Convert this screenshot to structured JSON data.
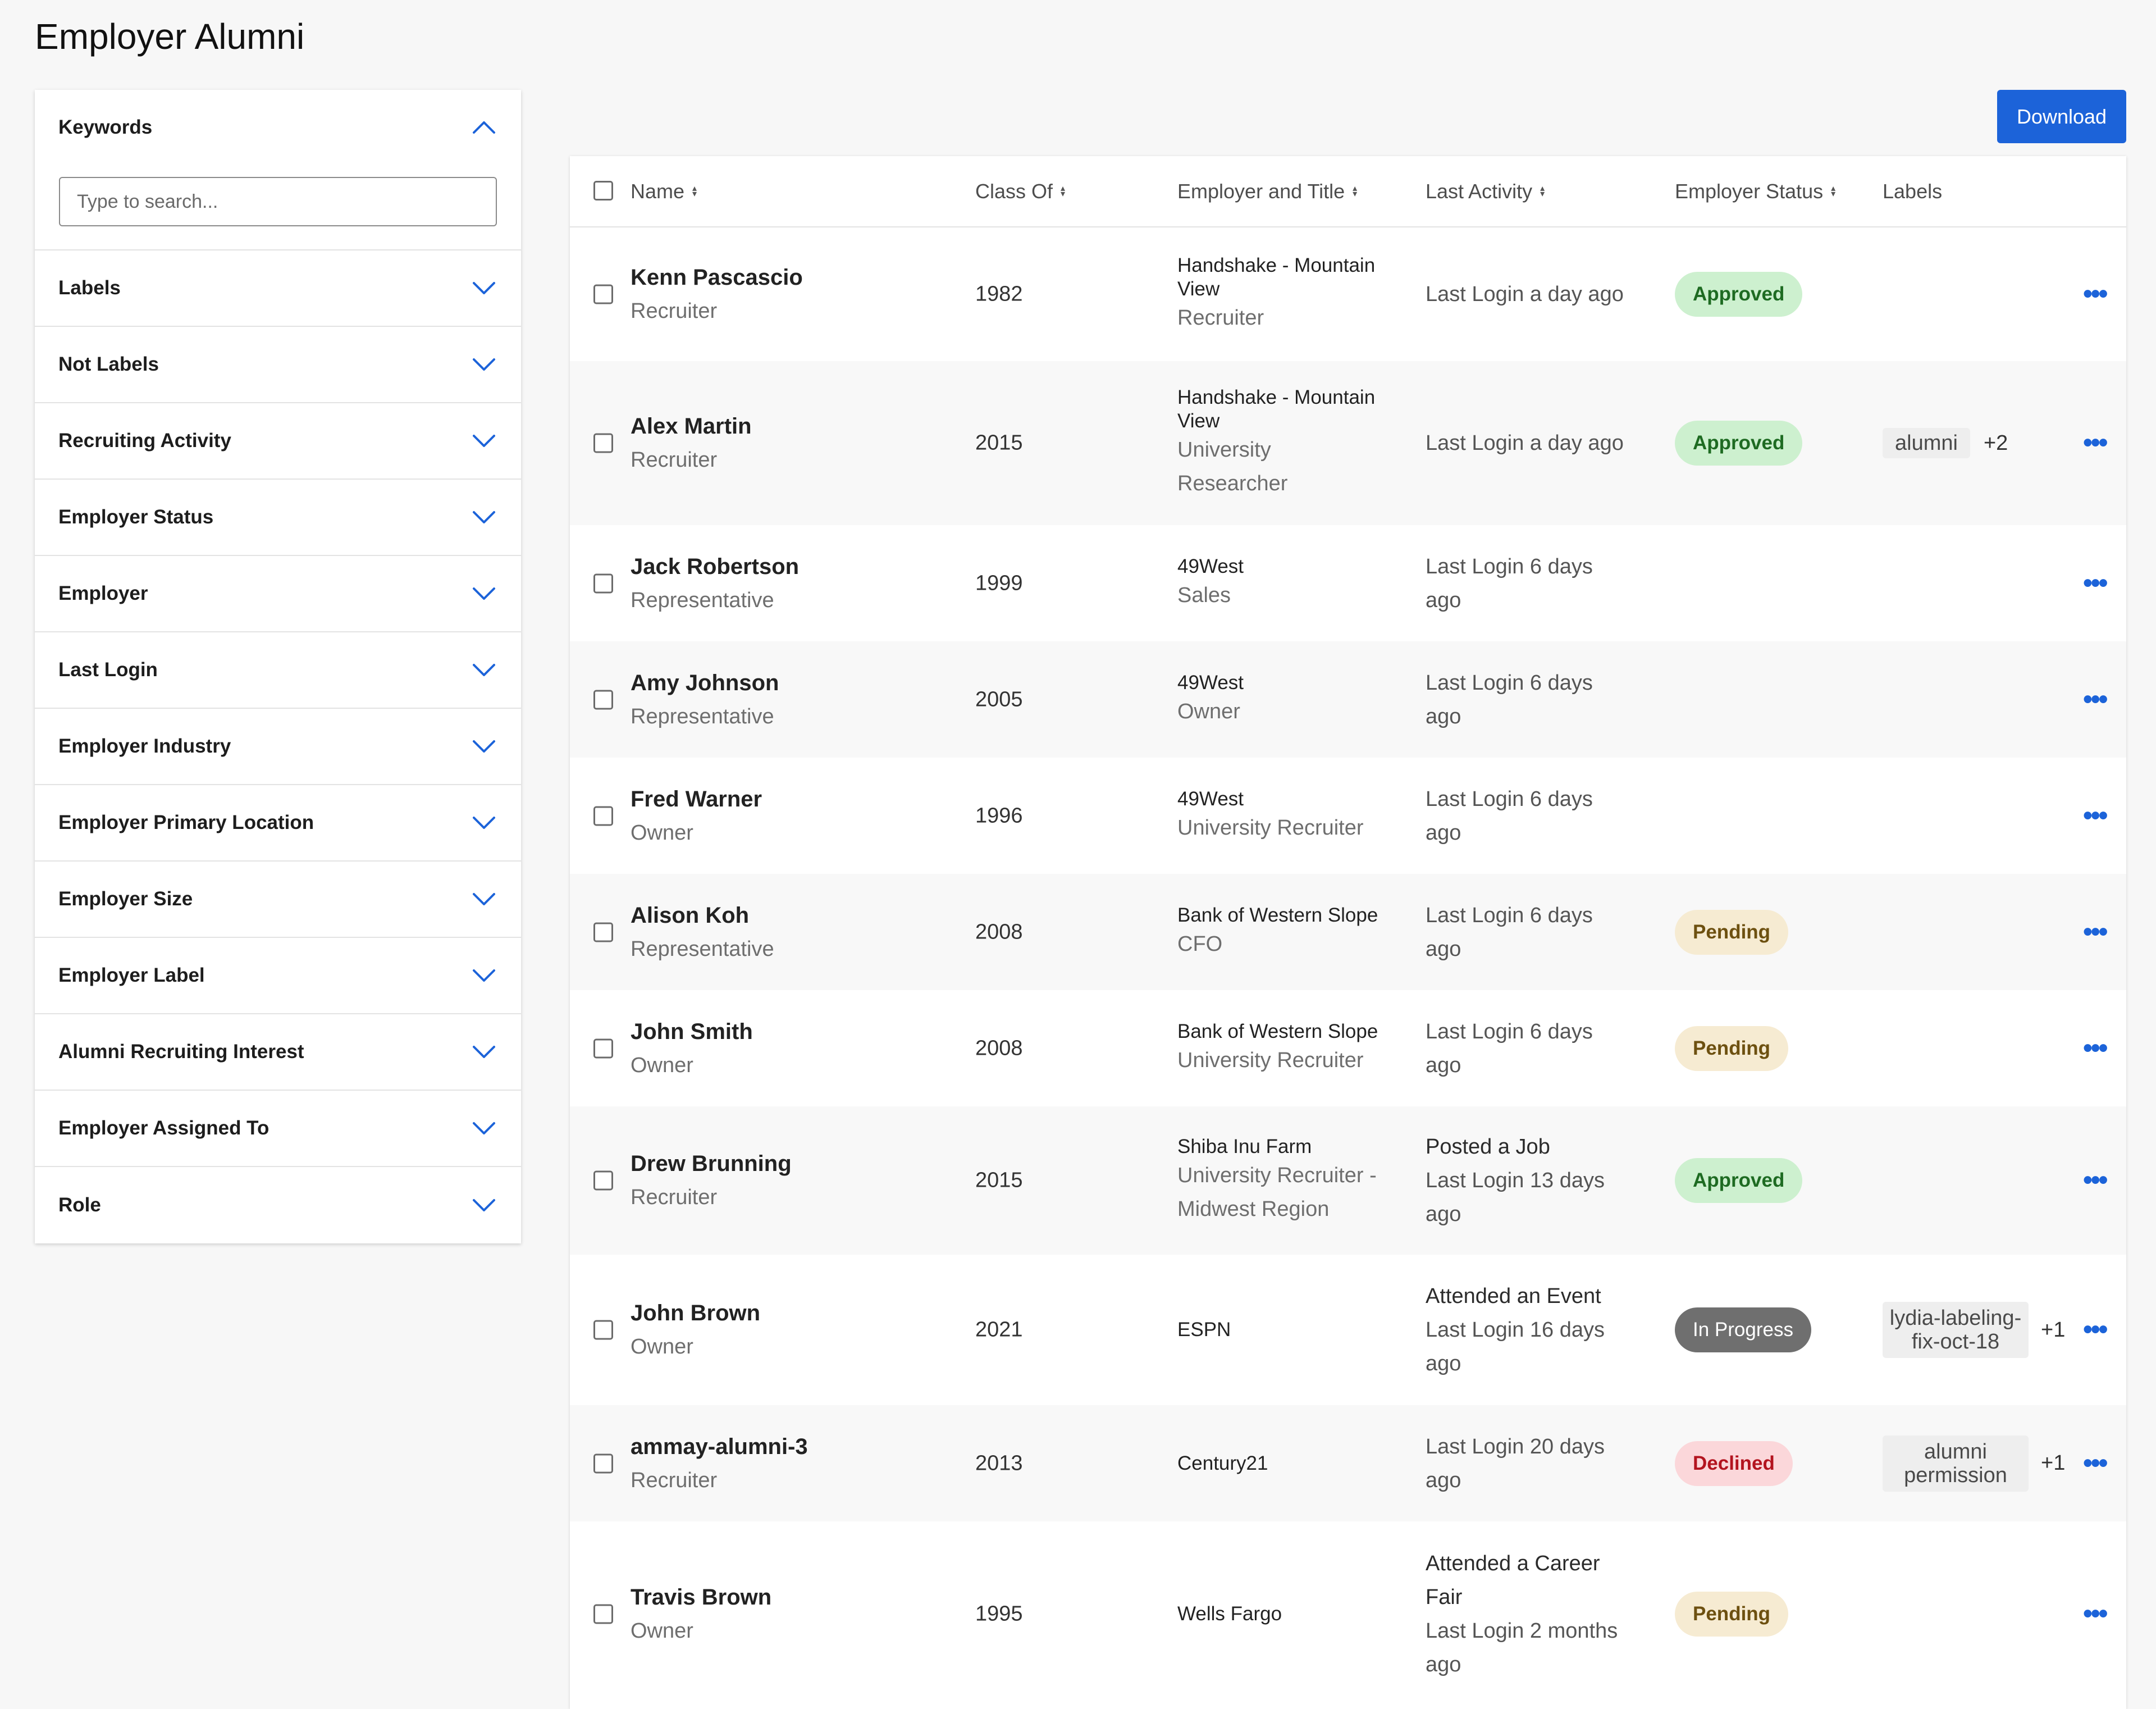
{
  "page": {
    "title": "Employer Alumni"
  },
  "filters": {
    "keywords": {
      "label": "Keywords",
      "placeholder": "Type to search..."
    },
    "items": [
      {
        "label": "Labels"
      },
      {
        "label": "Not Labels"
      },
      {
        "label": "Recruiting Activity"
      },
      {
        "label": "Employer Status"
      },
      {
        "label": "Employer"
      },
      {
        "label": "Last Login"
      },
      {
        "label": "Employer Industry"
      },
      {
        "label": "Employer Primary Location"
      },
      {
        "label": "Employer Size"
      },
      {
        "label": "Employer Label"
      },
      {
        "label": "Alumni Recruiting Interest"
      },
      {
        "label": "Employer Assigned To"
      },
      {
        "label": "Role"
      }
    ]
  },
  "toolbar": {
    "download_label": "Download"
  },
  "table": {
    "columns": [
      "Name",
      "Class Of",
      "Employer and Title",
      "Last Activity",
      "Employer Status",
      "Labels"
    ],
    "rows": [
      {
        "name": "Kenn Pascascio",
        "role": "Recruiter",
        "class_of": "1982",
        "employer": [
          "Handshake - Mountain",
          "View"
        ],
        "title": [
          "Recruiter"
        ],
        "activity": [],
        "login": [
          "Last Login a day ago"
        ],
        "status": "Approved",
        "labels": [],
        "labels_more": ""
      },
      {
        "name": "Alex Martin",
        "role": "Recruiter",
        "class_of": "2015",
        "employer": [
          "Handshake - Mountain",
          "View"
        ],
        "title": [
          "University",
          "Researcher"
        ],
        "activity": [],
        "login": [
          "Last Login a day ago"
        ],
        "status": "Approved",
        "labels": [
          "alumni"
        ],
        "labels_more": "+2"
      },
      {
        "name": "Jack Robertson",
        "role": "Representative",
        "class_of": "1999",
        "employer": [
          "49West"
        ],
        "title": [
          "Sales"
        ],
        "activity": [],
        "login": [
          "Last Login 6 days",
          "ago"
        ],
        "status": "",
        "labels": [],
        "labels_more": ""
      },
      {
        "name": "Amy Johnson",
        "role": "Representative",
        "class_of": "2005",
        "employer": [
          "49West"
        ],
        "title": [
          "Owner"
        ],
        "activity": [],
        "login": [
          "Last Login 6 days",
          "ago"
        ],
        "status": "",
        "labels": [],
        "labels_more": ""
      },
      {
        "name": "Fred Warner",
        "role": "Owner",
        "class_of": "1996",
        "employer": [
          "49West"
        ],
        "title": [
          "University Recruiter"
        ],
        "activity": [],
        "login": [
          "Last Login 6 days",
          "ago"
        ],
        "status": "",
        "labels": [],
        "labels_more": ""
      },
      {
        "name": "Alison Koh",
        "role": "Representative",
        "class_of": "2008",
        "employer": [
          "Bank of Western Slope"
        ],
        "title": [
          "CFO"
        ],
        "activity": [],
        "login": [
          "Last Login 6 days",
          "ago"
        ],
        "status": "Pending",
        "labels": [],
        "labels_more": ""
      },
      {
        "name": "John Smith",
        "role": "Owner",
        "class_of": "2008",
        "employer": [
          "Bank of Western Slope"
        ],
        "title": [
          "University Recruiter"
        ],
        "activity": [],
        "login": [
          "Last Login 6 days",
          "ago"
        ],
        "status": "Pending",
        "labels": [],
        "labels_more": ""
      },
      {
        "name": "Drew Brunning",
        "role": "Recruiter",
        "class_of": "2015",
        "employer": [
          "Shiba Inu Farm"
        ],
        "title": [
          "University Recruiter -",
          "Midwest Region"
        ],
        "activity": [
          "Posted a Job"
        ],
        "login": [
          "Last Login 13 days",
          "ago"
        ],
        "status": "Approved",
        "labels": [],
        "labels_more": ""
      },
      {
        "name": "John Brown",
        "role": "Owner",
        "class_of": "2021",
        "employer": [
          "ESPN"
        ],
        "title": [],
        "activity": [
          "Attended an Event"
        ],
        "login": [
          "Last Login 16 days",
          "ago"
        ],
        "status": "In Progress",
        "labels": [
          "lydia-labeling-fix-oct-18"
        ],
        "labels_more": "+1"
      },
      {
        "name": "ammay-alumni-3",
        "role": "Recruiter",
        "class_of": "2013",
        "employer": [
          "Century21"
        ],
        "title": [],
        "activity": [],
        "login": [
          "Last Login 20 days",
          "ago"
        ],
        "status": "Declined",
        "labels": [
          "alumni permission"
        ],
        "labels_more": "+1"
      },
      {
        "name": "Travis Brown",
        "role": "Owner",
        "class_of": "1995",
        "employer": [
          "Wells Fargo"
        ],
        "title": [],
        "activity": [
          "Attended a Career",
          "Fair"
        ],
        "login": [
          "Last Login 2 months",
          "ago"
        ],
        "status": "Pending",
        "labels": [],
        "labels_more": ""
      }
    ]
  }
}
